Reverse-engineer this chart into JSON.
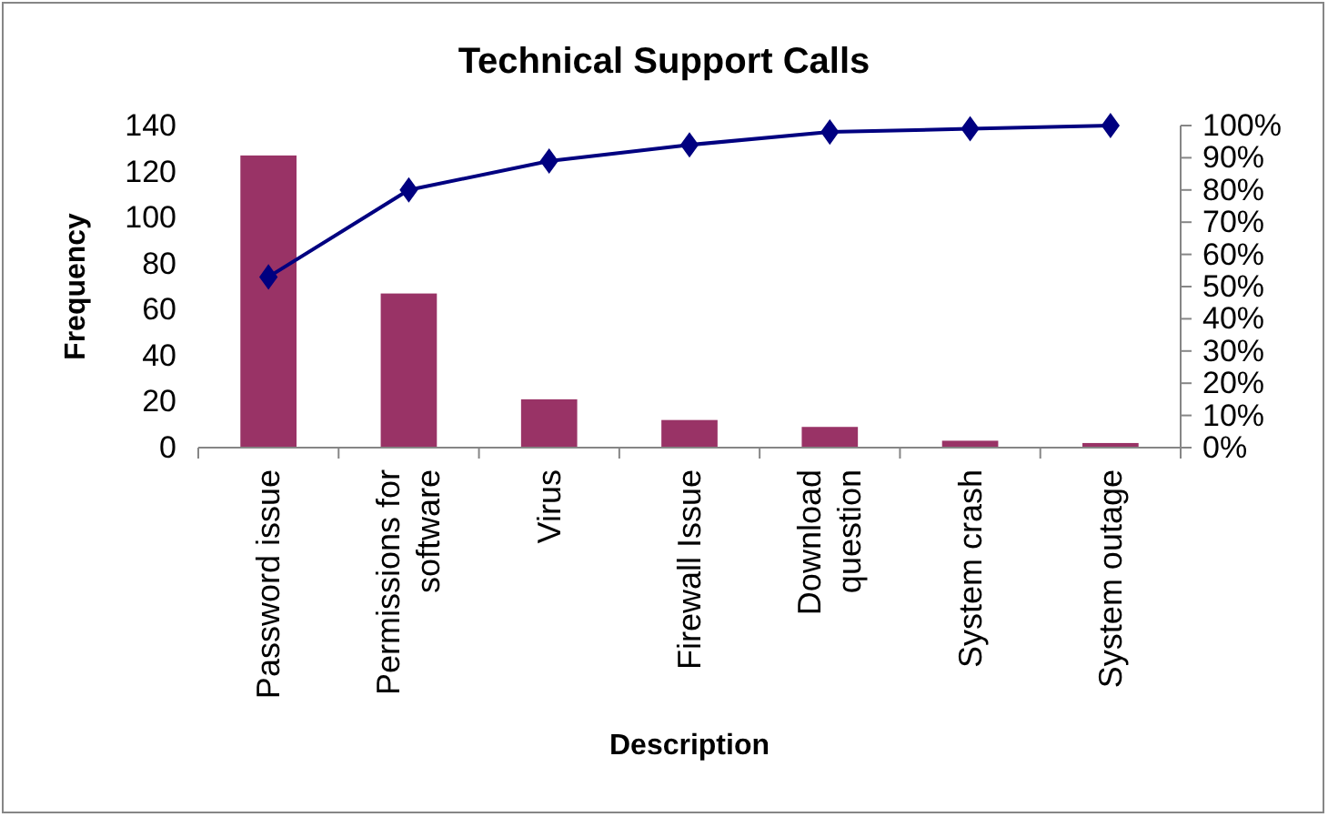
{
  "chart_data": {
    "type": "bar",
    "title": "Technical Support Calls",
    "xlabel": "Description",
    "ylabel": "Frequency",
    "categories": [
      "Password issue",
      "Permissions for software",
      "Virus",
      "Firewall Issue",
      "Download question",
      "System crash",
      "System outage"
    ],
    "series": [
      {
        "color": "#993366",
        "values": [
          127,
          67,
          21,
          12,
          9,
          3,
          2
        ]
      },
      {
        "type": "line",
        "axis": "y2",
        "color": "#000080",
        "values": [
          53,
          80,
          89,
          94,
          98,
          99,
          100
        ]
      }
    ],
    "ylim": [
      0,
      140
    ],
    "yticks": [
      0,
      20,
      40,
      60,
      80,
      100,
      120,
      140
    ],
    "y2lim": [
      0,
      100
    ],
    "y2ticks": [
      {
        "value": 0,
        "label": "0%"
      },
      {
        "value": 10,
        "label": "10%"
      },
      {
        "value": 20,
        "label": "20%"
      },
      {
        "value": 30,
        "label": "30%"
      },
      {
        "value": 40,
        "label": "40%"
      },
      {
        "value": 50,
        "label": "50%"
      },
      {
        "value": 60,
        "label": "60%"
      },
      {
        "value": 70,
        "label": "70%"
      },
      {
        "value": 80,
        "label": "80%"
      },
      {
        "value": 90,
        "label": "90%"
      },
      {
        "value": 100,
        "label": "100%"
      }
    ],
    "marker": "diamond",
    "line_style": "solid"
  }
}
